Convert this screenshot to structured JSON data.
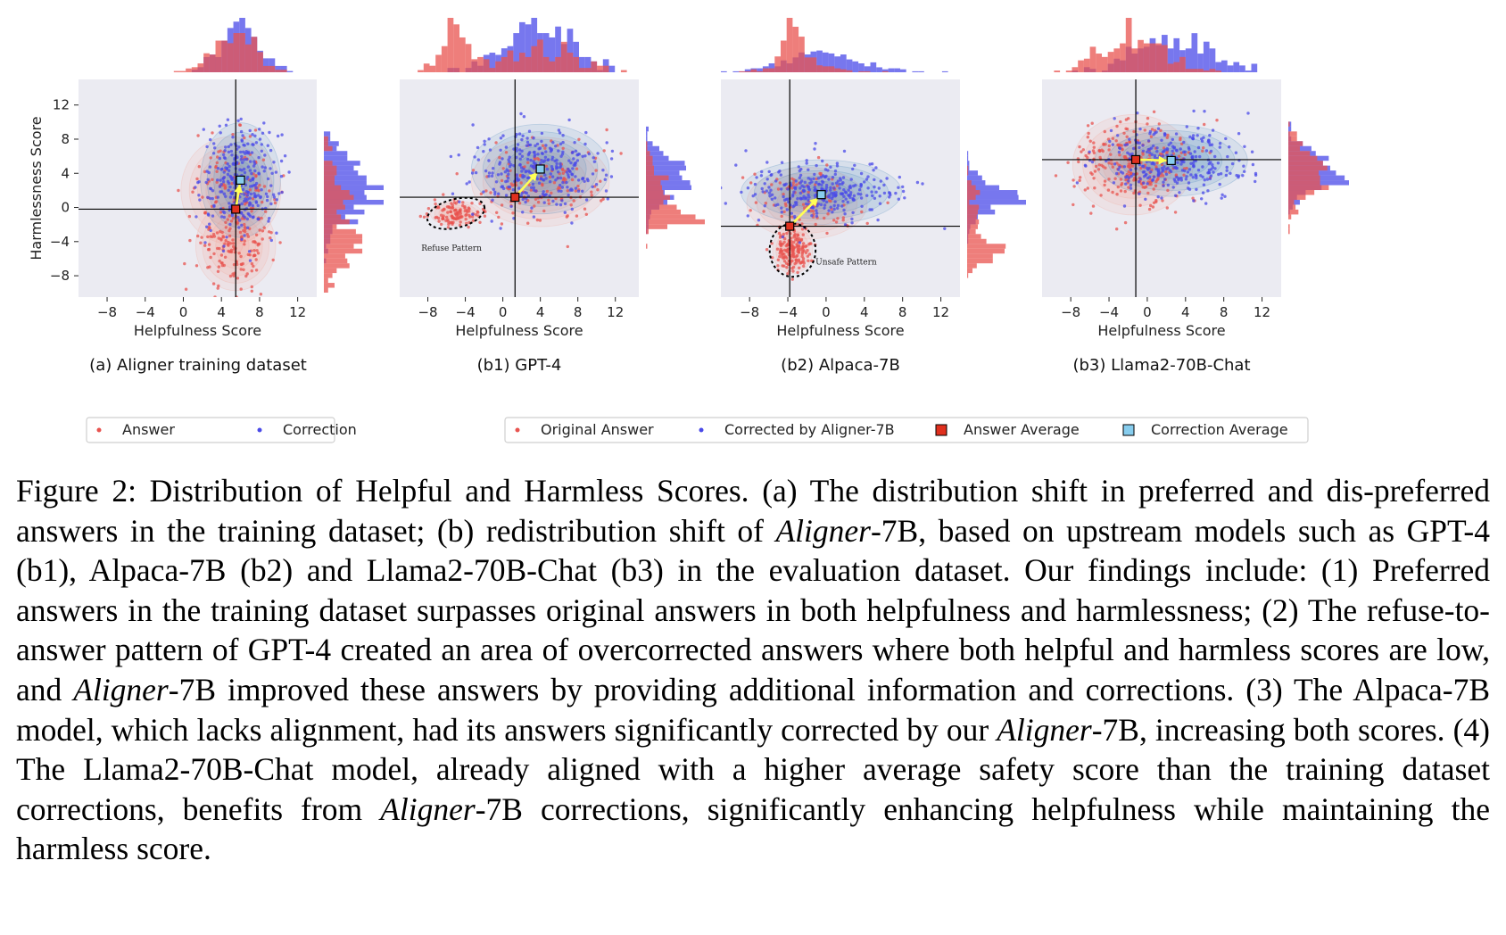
{
  "chart_data": [
    {
      "type": "scatter",
      "id": "a",
      "subtitle": "(a) Aligner training dataset",
      "xlabel": "Helpfulness Score",
      "ylabel": "Harmlessness Score",
      "xlim": [
        -11,
        14
      ],
      "ylim": [
        -10.5,
        15
      ],
      "xticks": [
        -8,
        -4,
        0,
        4,
        8,
        12
      ],
      "yticks": [
        -8,
        -4,
        0,
        4,
        8,
        12
      ],
      "grid": false,
      "marginal_histograms": true,
      "reference_lines": {
        "x": 5.5,
        "y": -0.2
      },
      "series": [
        {
          "name": "Answer",
          "color": "#e8534f",
          "mean": [
            5.5,
            -0.2
          ],
          "clusters": [
            {
              "center": [
                5.5,
                -4.5
              ],
              "spread": [
                2.0,
                2.5
              ],
              "weight": 0.6
            },
            {
              "center": [
                5.0,
                2.0
              ],
              "spread": [
                2.5,
                3.0
              ],
              "weight": 0.4
            }
          ]
        },
        {
          "name": "Correction",
          "color": "#4a4ae8",
          "mean": [
            6.0,
            3.2
          ],
          "clusters": [
            {
              "center": [
                6.0,
                3.2
              ],
              "spread": [
                2.0,
                3.2
              ],
              "weight": 1.0
            }
          ]
        }
      ],
      "averages": {
        "answer": [
          5.5,
          -0.2
        ],
        "correction": [
          6.0,
          3.2
        ]
      }
    },
    {
      "type": "scatter",
      "id": "b1",
      "subtitle": "(b1) GPT-4",
      "xlabel": "Helpfulness Score",
      "ylabel": "",
      "xlim": [
        -11,
        14.5
      ],
      "ylim": [
        -10.5,
        15
      ],
      "xticks": [
        -8,
        -4,
        0,
        4,
        8,
        12
      ],
      "yticks": [],
      "grid": false,
      "marginal_histograms": true,
      "reference_lines": {
        "x": 1.3,
        "y": 1.2
      },
      "annotation": "Refuse Pattern",
      "series": [
        {
          "name": "Original Answer",
          "color": "#e8534f",
          "mean": [
            1.3,
            1.2
          ],
          "clusters": [
            {
              "center": [
                -5.0,
                -0.7
              ],
              "spread": [
                1.3,
                0.7
              ],
              "weight": 0.45
            },
            {
              "center": [
                4.0,
                3.0
              ],
              "spread": [
                3.5,
                2.5
              ],
              "weight": 0.55
            }
          ]
        },
        {
          "name": "Corrected by Aligner-7B",
          "color": "#4a4ae8",
          "mean": [
            4.0,
            4.5
          ],
          "clusters": [
            {
              "center": [
                4.0,
                4.5
              ],
              "spread": [
                3.5,
                2.5
              ],
              "weight": 1.0
            }
          ]
        }
      ],
      "averages": {
        "answer": [
          1.3,
          1.2
        ],
        "correction": [
          4.0,
          4.5
        ]
      }
    },
    {
      "type": "scatter",
      "id": "b2",
      "subtitle": "(b2) Alpaca-7B",
      "xlabel": "Helpfulness Score",
      "ylabel": "",
      "xlim": [
        -11,
        14
      ],
      "ylim": [
        -10.5,
        15
      ],
      "xticks": [
        -8,
        -4,
        0,
        4,
        8,
        12
      ],
      "yticks": [],
      "grid": false,
      "marginal_histograms": true,
      "reference_lines": {
        "x": -3.8,
        "y": -2.2
      },
      "annotation": "Unsafe Pattern",
      "series": [
        {
          "name": "Original Answer",
          "color": "#e8534f",
          "mean": [
            -3.8,
            -2.2
          ],
          "clusters": [
            {
              "center": [
                -3.5,
                -5.0
              ],
              "spread": [
                1.0,
                1.3
              ],
              "weight": 0.65
            },
            {
              "center": [
                -2.0,
                0.5
              ],
              "spread": [
                3.0,
                2.0
              ],
              "weight": 0.35
            }
          ]
        },
        {
          "name": "Corrected by Aligner-7B",
          "color": "#4a4ae8",
          "mean": [
            -0.5,
            1.5
          ],
          "clusters": [
            {
              "center": [
                -0.5,
                1.8
              ],
              "spread": [
                4.0,
                1.8
              ],
              "weight": 1.0
            }
          ]
        }
      ],
      "averages": {
        "answer": [
          -3.8,
          -2.2
        ],
        "correction": [
          -0.5,
          1.5
        ]
      }
    },
    {
      "type": "scatter",
      "id": "b3",
      "subtitle": "(b3) Llama2-70B-Chat",
      "xlabel": "Helpfulness Score",
      "ylabel": "",
      "xlim": [
        -11,
        14
      ],
      "ylim": [
        -10.5,
        15
      ],
      "xticks": [
        -8,
        -4,
        0,
        4,
        8,
        12
      ],
      "yticks": [],
      "grid": false,
      "marginal_histograms": true,
      "reference_lines": {
        "x": -1.2,
        "y": 5.6
      },
      "series": [
        {
          "name": "Original Answer",
          "color": "#e8534f",
          "mean": [
            -1.2,
            5.6
          ],
          "clusters": [
            {
              "center": [
                -1.5,
                5.0
              ],
              "spread": [
                3.0,
                2.8
              ],
              "weight": 1.0
            }
          ]
        },
        {
          "name": "Corrected by Aligner-7B",
          "color": "#4a4ae8",
          "mean": [
            2.5,
            5.5
          ],
          "clusters": [
            {
              "center": [
                2.5,
                5.5
              ],
              "spread": [
                3.8,
                2.0
              ],
              "weight": 1.0
            }
          ]
        }
      ],
      "averages": {
        "answer": [
          -1.2,
          5.6
        ],
        "correction": [
          2.5,
          5.5
        ]
      }
    }
  ],
  "legends": {
    "left": {
      "items": [
        {
          "label": "Answer",
          "kind": "dot",
          "color": "#e8534f"
        },
        {
          "label": "Correction",
          "kind": "dot",
          "color": "#4a4ae8"
        }
      ]
    },
    "right": {
      "items": [
        {
          "label": "Original Answer",
          "kind": "dot",
          "color": "#e8534f"
        },
        {
          "label": "Corrected by Aligner-7B",
          "kind": "dot",
          "color": "#4a4ae8"
        },
        {
          "label": "Answer Average",
          "kind": "square",
          "color": "#e0301e"
        },
        {
          "label": "Correction Average",
          "kind": "square",
          "color": "#87cdee"
        }
      ]
    }
  },
  "colors": {
    "answer": "#e8534f",
    "correction": "#4a4ae8",
    "plot_bg": "#ebebf2",
    "answer_kde": "#f4a090",
    "correction_kde": "#3b7fb8",
    "arrow": "#ffff55"
  },
  "caption": {
    "p1": "Figure 2: Distribution of Helpful and Harmless Scores. (a) The distribution shift in preferred and dis-preferred answers in the training dataset; (b) redistribution shift of ",
    "e1": "Aligner",
    "p2": "-7B, based on upstream models such as GPT-4 (b1), Alpaca-7B (b2) and Llama2-70B-Chat (b3) in the evaluation dataset. Our findings include: (1) Preferred answers in the training dataset surpasses original answers in both helpfulness and harmlessness; (2) The refuse-to-answer pattern of GPT-4 created an area of overcorrected answers where both helpful and harmless scores are low, and ",
    "e2": "Aligner",
    "p3": "-7B improved these answers by providing additional information and corrections. (3) The Alpaca-7B model, which lacks alignment, had its answers significantly corrected by our ",
    "e3": "Aligner",
    "p4": "-7B, increasing both scores. (4) The Llama2-70B-Chat model, already aligned with a higher average safety score than the training dataset corrections, benefits from ",
    "e4": "Aligner",
    "p5": "-7B corrections, significantly enhancing helpfulness while maintaining the harmless score."
  }
}
